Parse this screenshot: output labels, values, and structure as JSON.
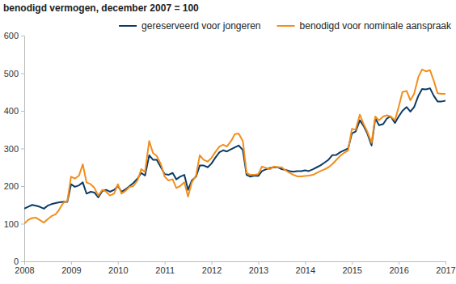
{
  "chart_data": {
    "type": "line",
    "title": "benodigd vermogen, december 2007 = 100",
    "x": [
      2008,
      2008.08,
      2008.17,
      2008.25,
      2008.33,
      2008.42,
      2008.5,
      2008.58,
      2008.67,
      2008.75,
      2008.83,
      2008.92,
      2009,
      2009.08,
      2009.17,
      2009.25,
      2009.33,
      2009.42,
      2009.5,
      2009.58,
      2009.67,
      2009.75,
      2009.83,
      2009.92,
      2010,
      2010.08,
      2010.17,
      2010.25,
      2010.33,
      2010.42,
      2010.5,
      2010.58,
      2010.67,
      2010.75,
      2010.83,
      2010.92,
      2011,
      2011.08,
      2011.17,
      2011.25,
      2011.33,
      2011.42,
      2011.5,
      2011.58,
      2011.67,
      2011.75,
      2011.83,
      2011.92,
      2012,
      2012.08,
      2012.17,
      2012.25,
      2012.33,
      2012.42,
      2012.5,
      2012.58,
      2012.67,
      2012.75,
      2012.83,
      2012.92,
      2013,
      2013.08,
      2013.17,
      2013.25,
      2013.33,
      2013.42,
      2013.5,
      2013.58,
      2013.67,
      2013.75,
      2013.83,
      2013.92,
      2014,
      2014.08,
      2014.17,
      2014.25,
      2014.33,
      2014.42,
      2014.5,
      2014.58,
      2014.67,
      2014.75,
      2014.83,
      2014.92,
      2015,
      2015.08,
      2015.17,
      2015.25,
      2015.33,
      2015.42,
      2015.5,
      2015.58,
      2015.67,
      2015.75,
      2015.83,
      2015.92,
      2016,
      2016.08,
      2016.17,
      2016.25,
      2016.33,
      2016.42,
      2016.5,
      2016.58,
      2016.67,
      2016.75,
      2016.83,
      2016.92,
      2017
    ],
    "series": [
      {
        "name": "gereserveerd voor jongeren",
        "color": "#0d3b66",
        "values": [
          140,
          145,
          150,
          148,
          145,
          140,
          148,
          152,
          155,
          157,
          158,
          158,
          205,
          198,
          202,
          210,
          180,
          185,
          183,
          170,
          187,
          190,
          185,
          190,
          200,
          185,
          192,
          200,
          208,
          220,
          235,
          228,
          282,
          270,
          270,
          250,
          232,
          230,
          235,
          218,
          225,
          230,
          190,
          215,
          225,
          255,
          255,
          250,
          260,
          275,
          290,
          295,
          292,
          298,
          303,
          308,
          296,
          230,
          225,
          228,
          227,
          240,
          245,
          248,
          250,
          250,
          245,
          243,
          240,
          238,
          240,
          240,
          242,
          240,
          245,
          250,
          255,
          263,
          270,
          282,
          283,
          290,
          295,
          300,
          340,
          345,
          375,
          360,
          340,
          308,
          380,
          362,
          365,
          380,
          385,
          368,
          385,
          400,
          410,
          398,
          410,
          440,
          458,
          457,
          460,
          440,
          425,
          425,
          427
        ]
      },
      {
        "name": "benodigd voor nominale aanspraak",
        "color": "#f28e1c",
        "values": [
          100,
          110,
          115,
          116,
          110,
          103,
          112,
          120,
          125,
          138,
          155,
          160,
          225,
          220,
          228,
          258,
          210,
          205,
          195,
          175,
          190,
          185,
          175,
          180,
          205,
          180,
          188,
          198,
          200,
          215,
          245,
          238,
          320,
          288,
          280,
          258,
          225,
          215,
          218,
          195,
          200,
          210,
          172,
          210,
          228,
          282,
          270,
          265,
          275,
          290,
          305,
          310,
          305,
          320,
          338,
          340,
          320,
          235,
          230,
          230,
          232,
          252,
          248,
          245,
          252,
          250,
          250,
          242,
          235,
          230,
          226,
          226,
          227,
          228,
          230,
          235,
          240,
          245,
          250,
          258,
          270,
          280,
          288,
          295,
          352,
          350,
          390,
          365,
          345,
          315,
          385,
          375,
          385,
          388,
          385,
          375,
          410,
          450,
          453,
          428,
          445,
          490,
          510,
          505,
          508,
          480,
          447,
          445,
          445
        ]
      }
    ],
    "xlim": [
      2008,
      2017
    ],
    "xticks": [
      2008,
      2009,
      2010,
      2011,
      2012,
      2013,
      2014,
      2015,
      2016,
      2017
    ],
    "ylim": [
      0,
      600
    ],
    "yticks": [
      0,
      100,
      200,
      300,
      400,
      500,
      600
    ],
    "grid": false,
    "legend": "top"
  }
}
